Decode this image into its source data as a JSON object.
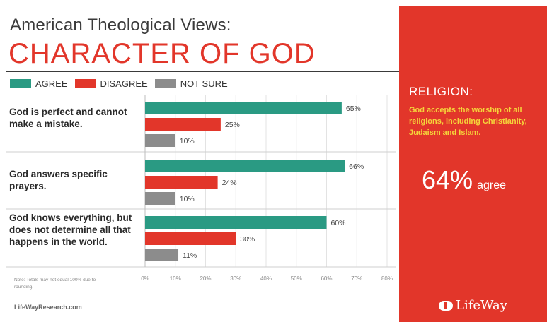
{
  "header": {
    "subtitle": "American Theological Views:",
    "title": "CHARACTER OF GOD"
  },
  "colors": {
    "agree": "#2a9a83",
    "disagree": "#e2362a",
    "not_sure": "#8c8c8c",
    "accent": "#e2362a",
    "panel_highlight": "#f5d43a"
  },
  "legend": {
    "agree": "AGREE",
    "disagree": "DISAGREE",
    "not_sure": "NOT SURE"
  },
  "statements": {
    "s1": "God is perfect and cannot make a mistake.",
    "s2": "God answers specific prayers.",
    "s3": "God knows everything, but does not determine all that happens in the world."
  },
  "chart_data": {
    "type": "bar",
    "orientation": "horizontal",
    "categories": [
      "God is perfect and cannot make a mistake.",
      "God answers specific prayers.",
      "God knows everything, but does not determine all that happens in the world."
    ],
    "series": [
      {
        "name": "AGREE",
        "values": [
          65,
          66,
          60
        ],
        "labels": [
          "65%",
          "66%",
          "60%"
        ]
      },
      {
        "name": "DISAGREE",
        "values": [
          25,
          24,
          30
        ],
        "labels": [
          "25%",
          "24%",
          "30%"
        ]
      },
      {
        "name": "NOT SURE",
        "values": [
          10,
          10,
          11
        ],
        "labels": [
          "10%",
          "10%",
          "11%"
        ]
      }
    ],
    "xlim": [
      0,
      80
    ],
    "xticks": [
      "0%",
      "10%",
      "20%",
      "30%",
      "40%",
      "50%",
      "60%",
      "70%",
      "80%"
    ],
    "grid": true
  },
  "footer": {
    "note": "Note: Totals may not equal 100% due to rounding.",
    "source": "LifeWayResearch.com"
  },
  "panel": {
    "heading": "RELIGION:",
    "statement": "God accepts the worship of all religions, including Christianity, Judaism and Islam.",
    "percent": "64%",
    "agree_label": "agree",
    "logo_text": "LifeWay"
  }
}
